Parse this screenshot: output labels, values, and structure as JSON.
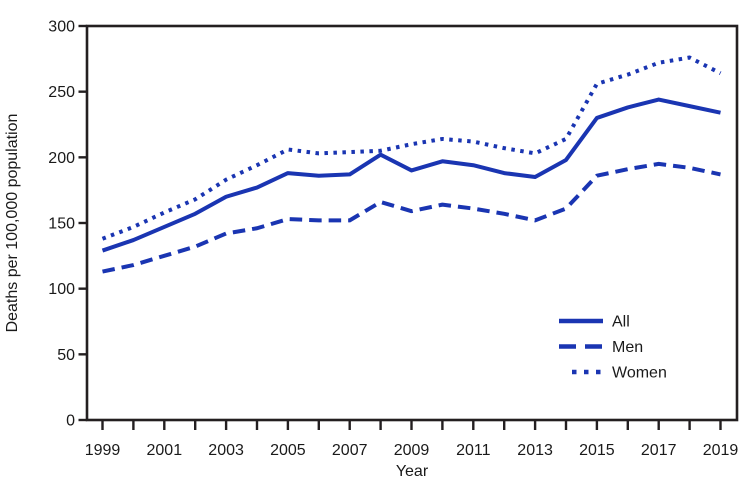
{
  "figure": {
    "background": "#ffffff",
    "colors": {
      "line": "#1a35b2",
      "axis": "#231f20",
      "text": "#1a1a1a"
    }
  },
  "chart_data": {
    "type": "line",
    "title": "",
    "xlabel": "Year",
    "ylabel": "Deaths per 100,000 population",
    "x": [
      1999,
      2000,
      2001,
      2002,
      2003,
      2004,
      2005,
      2006,
      2007,
      2008,
      2009,
      2010,
      2011,
      2012,
      2013,
      2014,
      2015,
      2016,
      2017,
      2018,
      2019
    ],
    "series": [
      {
        "name": "All",
        "line_style": "solid",
        "values": [
          129,
          137,
          147,
          157,
          170,
          177,
          188,
          186,
          187,
          202,
          190,
          197,
          194,
          188,
          185,
          198,
          230,
          238,
          244,
          239,
          234
        ]
      },
      {
        "name": "Men",
        "line_style": "dashed",
        "values": [
          113,
          118,
          125,
          132,
          142,
          146,
          153,
          152,
          152,
          166,
          159,
          164,
          161,
          157,
          152,
          161,
          186,
          191,
          195,
          192,
          187
        ]
      },
      {
        "name": "Women",
        "line_style": "dotted",
        "values": [
          138,
          147,
          158,
          168,
          183,
          194,
          206,
          203,
          204,
          205,
          210,
          214,
          212,
          207,
          203,
          214,
          256,
          263,
          272,
          276,
          264
        ]
      }
    ],
    "ylim": [
      0,
      300
    ],
    "yticks": [
      0,
      50,
      100,
      150,
      200,
      250,
      300
    ],
    "xticks_labeled": [
      1999,
      2001,
      2003,
      2005,
      2007,
      2009,
      2011,
      2013,
      2015,
      2017,
      2019
    ],
    "grid": false,
    "frame": "box",
    "legend_position": "lower-right"
  },
  "legend": {
    "items": [
      {
        "label": "All"
      },
      {
        "label": "Men"
      },
      {
        "label": "Women"
      }
    ]
  }
}
